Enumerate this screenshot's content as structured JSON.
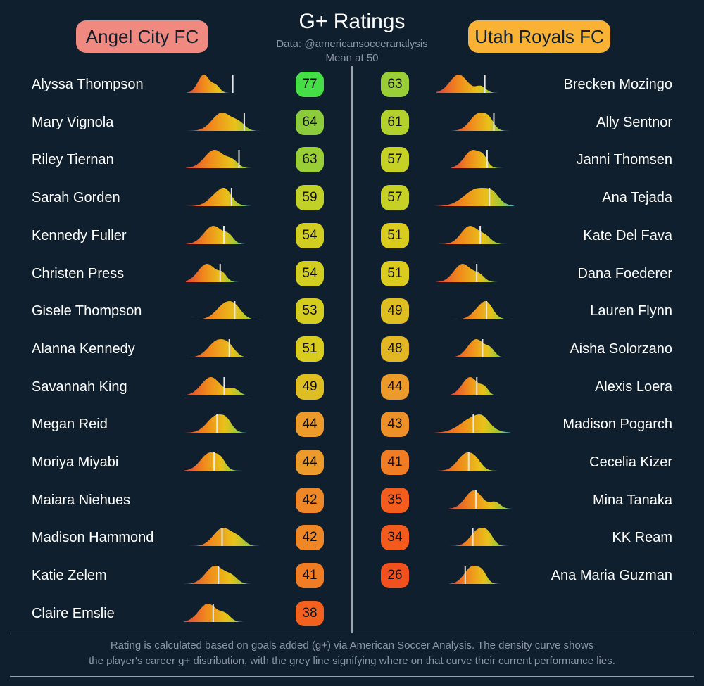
{
  "header": {
    "title": "G+ Ratings",
    "source": "Data: @americansocceranalysis",
    "mean_note": "Mean at 50"
  },
  "teams": {
    "left": {
      "name": "Angel City FC",
      "color": "#f08a80"
    },
    "right": {
      "name": "Utah Royals FC",
      "color": "#f9b233"
    }
  },
  "footnote": {
    "line1": "Rating is calculated based on goals added (g+) via American Soccer Analysis. The density curve shows",
    "line2": "the player's career g+ distribution, with the grey line signifying where on that curve their current performance lies."
  },
  "chart_data": {
    "type": "table",
    "columns": [
      "player",
      "rating"
    ],
    "angel_city": [
      {
        "player": "Alyssa Thompson",
        "rating": 77
      },
      {
        "player": "Mary Vignola",
        "rating": 64
      },
      {
        "player": "Riley Tiernan",
        "rating": 63
      },
      {
        "player": "Sarah Gorden",
        "rating": 59
      },
      {
        "player": "Kennedy Fuller",
        "rating": 54
      },
      {
        "player": "Christen Press",
        "rating": 54
      },
      {
        "player": "Gisele Thompson",
        "rating": 53
      },
      {
        "player": "Alanna Kennedy",
        "rating": 51
      },
      {
        "player": "Savannah King",
        "rating": 49
      },
      {
        "player": "Megan Reid",
        "rating": 44
      },
      {
        "player": "Moriya Miyabi",
        "rating": 44
      },
      {
        "player": "Maiara Niehues",
        "rating": 42
      },
      {
        "player": "Madison Hammond",
        "rating": 42
      },
      {
        "player": "Katie Zelem",
        "rating": 41
      },
      {
        "player": "Claire Emslie",
        "rating": 38
      }
    ],
    "utah_royals": [
      {
        "player": "Brecken Mozingo",
        "rating": 63
      },
      {
        "player": "Ally Sentnor",
        "rating": 61
      },
      {
        "player": "Janni Thomsen",
        "rating": 57
      },
      {
        "player": "Ana Tejada",
        "rating": 57
      },
      {
        "player": "Kate Del Fava",
        "rating": 51
      },
      {
        "player": "Dana Foederer",
        "rating": 51
      },
      {
        "player": "Lauren Flynn",
        "rating": 49
      },
      {
        "player": "Aisha Solorzano",
        "rating": 48
      },
      {
        "player": "Alexis Loera",
        "rating": 44
      },
      {
        "player": "Madison Pogarch",
        "rating": 43
      },
      {
        "player": "Cecelia Kizer",
        "rating": 41
      },
      {
        "player": "Mina Tanaka",
        "rating": 35
      },
      {
        "player": "KK Ream",
        "rating": 34
      },
      {
        "player": "Ana Maria Guzman",
        "rating": 26
      }
    ]
  }
}
